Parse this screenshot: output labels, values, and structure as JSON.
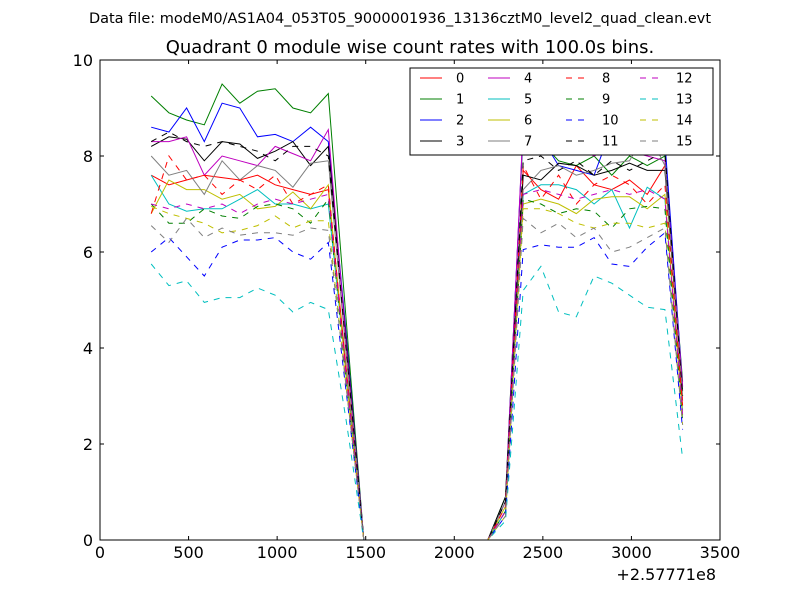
{
  "suptitle": "Data file: modeM0/AS1A04_053T05_9000001936_13136cztM0_level2_quad_clean.evt",
  "chart_data": {
    "type": "line",
    "title": "Quadrant 0 module wise count rates with 100.0s bins.",
    "xlabel": "",
    "ylabel": "",
    "x_offset_label": "+2.57771e8",
    "xlim": [
      0,
      3500
    ],
    "ylim": [
      0,
      10
    ],
    "xticks": [
      0,
      500,
      1000,
      1500,
      2000,
      2500,
      3000,
      3500
    ],
    "yticks": [
      0,
      2,
      4,
      6,
      8,
      10
    ],
    "grid": false,
    "legend_position": "top-right",
    "x": [
      289,
      389,
      489,
      589,
      689,
      789,
      889,
      989,
      1089,
      1189,
      1289,
      1389,
      1489,
      1589,
      1689,
      1789,
      1889,
      1989,
      2089,
      2189,
      2289,
      2389,
      2489,
      2589,
      2689,
      2789,
      2889,
      2989,
      3089,
      3189,
      3289
    ],
    "series": [
      {
        "name": "0",
        "color": "#ff0000",
        "dash": "solid",
        "values": [
          7.6,
          7.4,
          7.5,
          7.6,
          7.55,
          7.5,
          7.6,
          7.4,
          7.3,
          7.2,
          7.3,
          3.6,
          0,
          0,
          0,
          0,
          0,
          0,
          0,
          0,
          0.6,
          7.7,
          7.3,
          7.1,
          7.8,
          7.4,
          7.3,
          7.5,
          7.2,
          7.8,
          2.9
        ]
      },
      {
        "name": "1",
        "color": "#007f00",
        "dash": "solid",
        "values": [
          9.25,
          8.9,
          8.75,
          8.65,
          9.5,
          9.1,
          9.35,
          9.4,
          9.0,
          8.9,
          9.3,
          4.6,
          0,
          0,
          0,
          0,
          0,
          0,
          0,
          0,
          0.9,
          8.5,
          8.3,
          7.9,
          7.8,
          8.0,
          7.6,
          8.0,
          7.8,
          8.0,
          3.3
        ]
      },
      {
        "name": "2",
        "color": "#0000ff",
        "dash": "solid",
        "values": [
          8.6,
          8.5,
          9.0,
          8.3,
          9.1,
          9.0,
          8.4,
          8.45,
          8.3,
          8.6,
          8.3,
          4.3,
          0,
          0,
          0,
          0,
          0,
          0,
          0,
          0,
          0.8,
          8.6,
          8.4,
          7.8,
          7.7,
          7.6,
          8.6,
          8.9,
          8.4,
          8.3,
          3.2
        ]
      },
      {
        "name": "3",
        "color": "#000000",
        "dash": "solid",
        "values": [
          8.2,
          8.4,
          8.35,
          7.9,
          8.3,
          8.25,
          7.95,
          8.1,
          8.3,
          7.8,
          8.2,
          4.2,
          0,
          0,
          0,
          0,
          0,
          0,
          0,
          0,
          0.9,
          7.6,
          7.5,
          7.85,
          7.8,
          7.6,
          7.7,
          7.85,
          7.7,
          7.7,
          3.1
        ]
      },
      {
        "name": "4",
        "color": "#bf00bf",
        "dash": "solid",
        "values": [
          8.3,
          8.3,
          8.4,
          7.6,
          8.0,
          7.9,
          7.8,
          8.2,
          8.05,
          7.9,
          8.55,
          4.1,
          0,
          0,
          0,
          0,
          0,
          0,
          0,
          0,
          0.8,
          8.65,
          8.6,
          8.55,
          8.2,
          8.0,
          8.2,
          8.1,
          8.0,
          7.9,
          3.2
        ]
      },
      {
        "name": "5",
        "color": "#00bfbf",
        "dash": "solid",
        "values": [
          7.6,
          7.0,
          6.85,
          6.9,
          6.9,
          7.1,
          7.3,
          7.0,
          7.0,
          6.9,
          7.0,
          3.5,
          0,
          0,
          0,
          0,
          0,
          0,
          0,
          0,
          0.6,
          7.2,
          7.4,
          7.4,
          7.3,
          7.0,
          7.3,
          6.5,
          7.35,
          7.1,
          2.7
        ]
      },
      {
        "name": "6",
        "color": "#bfbf00",
        "dash": "solid",
        "values": [
          6.8,
          7.5,
          7.3,
          7.3,
          7.1,
          7.2,
          6.9,
          6.95,
          7.25,
          6.9,
          7.4,
          3.4,
          0,
          0,
          0,
          0,
          0,
          0,
          0,
          0,
          0.7,
          7.0,
          7.1,
          7.0,
          6.8,
          7.1,
          7.15,
          7.15,
          6.9,
          7.2,
          2.6
        ]
      },
      {
        "name": "7",
        "color": "#7f7f7f",
        "dash": "solid",
        "values": [
          8.0,
          7.6,
          7.7,
          7.2,
          7.9,
          7.5,
          7.8,
          7.7,
          7.35,
          7.85,
          7.9,
          3.9,
          0,
          0,
          0,
          0,
          0,
          0,
          0,
          0,
          0.8,
          7.3,
          7.7,
          7.8,
          7.6,
          7.7,
          7.85,
          7.9,
          8.55,
          7.8,
          3.0
        ]
      },
      {
        "name": "8",
        "color": "#ff0000",
        "dash": "dashed",
        "values": [
          6.8,
          8.0,
          7.5,
          7.6,
          7.2,
          7.5,
          7.3,
          7.6,
          7.0,
          7.2,
          7.4,
          3.5,
          0,
          0,
          0,
          0,
          0,
          0,
          0,
          0,
          0.7,
          7.8,
          7.1,
          7.6,
          7.0,
          7.4,
          7.6,
          7.4,
          7.0,
          7.4,
          2.8
        ]
      },
      {
        "name": "9",
        "color": "#007f00",
        "dash": "dashed",
        "values": [
          7.0,
          6.6,
          6.6,
          6.9,
          6.75,
          6.7,
          6.95,
          7.0,
          6.9,
          6.6,
          7.1,
          3.3,
          0,
          0,
          0,
          0,
          0,
          0,
          0,
          0,
          0.6,
          7.1,
          7.0,
          6.8,
          6.9,
          6.85,
          6.5,
          6.9,
          6.95,
          6.9,
          2.5
        ]
      },
      {
        "name": "10",
        "color": "#0000ff",
        "dash": "dashed",
        "values": [
          6.0,
          6.3,
          5.9,
          5.5,
          6.1,
          6.25,
          6.25,
          6.3,
          6.0,
          5.85,
          6.2,
          3.1,
          0,
          0,
          0,
          0,
          0,
          0,
          0,
          0,
          0.5,
          6.05,
          6.15,
          6.1,
          6.1,
          6.3,
          5.75,
          5.7,
          6.1,
          6.4,
          2.3
        ]
      },
      {
        "name": "11",
        "color": "#000000",
        "dash": "dashed",
        "values": [
          8.3,
          8.5,
          8.3,
          8.2,
          8.3,
          8.2,
          8.1,
          7.9,
          8.2,
          8.2,
          8.0,
          4.0,
          0,
          0,
          0,
          0,
          0,
          0,
          0,
          0,
          0.8,
          7.9,
          8.0,
          7.7,
          7.9,
          7.6,
          7.9,
          7.7,
          7.9,
          8.1,
          3.0
        ]
      },
      {
        "name": "12",
        "color": "#bf00bf",
        "dash": "dashed",
        "values": [
          7.0,
          6.9,
          7.0,
          6.9,
          7.0,
          6.8,
          7.0,
          7.1,
          7.0,
          7.1,
          7.2,
          3.4,
          0,
          0,
          0,
          0,
          0,
          0,
          0,
          0,
          0.6,
          7.2,
          7.3,
          7.2,
          7.1,
          7.2,
          7.3,
          7.2,
          7.3,
          7.1,
          2.6
        ]
      },
      {
        "name": "13",
        "color": "#00bfbf",
        "dash": "dashed",
        "values": [
          5.75,
          5.3,
          5.4,
          4.95,
          5.05,
          5.05,
          5.25,
          5.1,
          4.75,
          4.95,
          4.8,
          2.5,
          0,
          0,
          0,
          0,
          0,
          0,
          0,
          0,
          0.4,
          5.2,
          5.7,
          4.75,
          4.65,
          5.5,
          5.35,
          5.1,
          4.85,
          4.8,
          1.7
        ]
      },
      {
        "name": "14",
        "color": "#bfbf00",
        "dash": "dashed",
        "values": [
          6.95,
          6.8,
          6.7,
          6.6,
          6.4,
          6.45,
          6.55,
          6.75,
          6.5,
          6.65,
          6.65,
          3.2,
          0,
          0,
          0,
          0,
          0,
          0,
          0,
          0,
          0.5,
          6.9,
          6.9,
          6.8,
          6.6,
          6.5,
          6.6,
          6.6,
          6.5,
          6.6,
          2.4
        ]
      },
      {
        "name": "15",
        "color": "#7f7f7f",
        "dash": "dashed",
        "values": [
          6.55,
          6.2,
          6.7,
          6.3,
          6.5,
          6.35,
          6.4,
          6.4,
          6.35,
          6.5,
          6.45,
          3.2,
          0,
          0,
          0,
          0,
          0,
          0,
          0,
          0,
          0.5,
          6.7,
          6.4,
          6.6,
          6.3,
          6.5,
          6.0,
          6.1,
          6.3,
          6.5,
          2.4
        ]
      }
    ]
  }
}
